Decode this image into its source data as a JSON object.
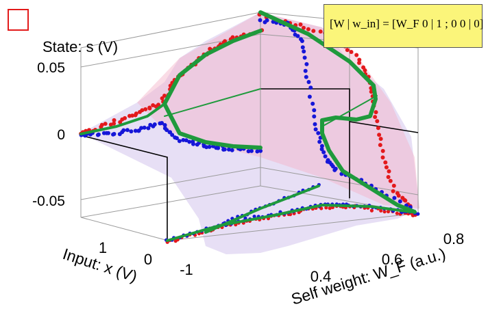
{
  "chart_data": {
    "type": "scatter",
    "title": "",
    "zlabel": "State: s (V)",
    "xlabel": "Input: x (V)",
    "ylabel": "Self weight: W_F (a.u.)",
    "z_ticks": [
      "0.05",
      "0",
      "-0.05"
    ],
    "x_ticks": [
      "1",
      "0",
      "-1"
    ],
    "y_ticks": [
      "0.4",
      "0.6",
      "0.8"
    ],
    "equation": "[W | w_in] = [W_F 0 | 1 ; 0 0 | 0]",
    "marker_label": "",
    "colors": {
      "red_series": "#e3191c",
      "blue_series": "#1616d8",
      "model_curve": "#1f9a3c",
      "surface_pink": "#f3b2c8",
      "surface_violet": "#c9b8e8"
    },
    "series": [
      {
        "values_description_only": "",
        "points_xy": [
          [
            -1.0,
            0.0
          ],
          [
            -0.8,
            0.004
          ],
          [
            -0.6,
            0.01
          ],
          [
            -0.4,
            0.018
          ],
          [
            -0.2,
            0.027
          ],
          [
            0.0,
            0.04
          ],
          [
            0.2,
            0.047
          ],
          [
            0.4,
            0.053
          ]
        ]
      },
      {
        "points_xy": [
          [
            -1.0,
            0.0
          ],
          [
            -0.8,
            -0.004
          ],
          [
            -0.6,
            -0.01
          ],
          [
            -0.4,
            -0.015
          ],
          [
            -0.2,
            -0.02
          ],
          [
            0.0,
            -0.024
          ]
        ]
      },
      {
        "points_xy": [
          [
            -1.0,
            0.06
          ],
          [
            -0.7,
            0.058
          ],
          [
            -0.4,
            0.052
          ],
          [
            -0.1,
            0.043
          ],
          [
            0.1,
            0.03
          ],
          [
            0.2,
            0.012
          ],
          [
            0.25,
            -0.01
          ],
          [
            0.3,
            -0.03
          ],
          [
            0.35,
            -0.045
          ],
          [
            0.45,
            -0.055
          ]
        ]
      },
      {
        "points_xy": [
          [
            -1.0,
            0.06
          ],
          [
            -0.6,
            0.05
          ],
          [
            -0.3,
            0.03
          ],
          [
            -0.1,
            0.01
          ],
          [
            0.0,
            -0.01
          ],
          [
            0.15,
            -0.03
          ],
          [
            0.3,
            -0.05
          ],
          [
            0.45,
            -0.06
          ]
        ]
      }
    ]
  }
}
